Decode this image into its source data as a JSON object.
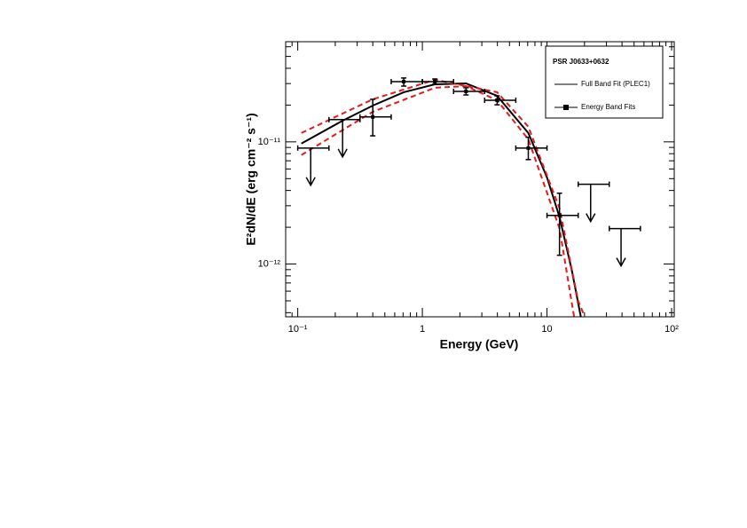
{
  "chart_data": {
    "type": "scatter",
    "xlabel": "Energy (GeV)",
    "ylabel": "E²dN/dE (erg cm⁻² s⁻¹)",
    "xscale": "log",
    "yscale": "log",
    "xlim": [
      0.08,
      105
    ],
    "ylim": [
      3.7e-13,
      6.6e-11
    ],
    "xticks": [
      {
        "value": 0.1,
        "label": "10⁻¹"
      },
      1,
      10,
      {
        "value": 100,
        "label": "10²"
      }
    ],
    "yticks": [
      {
        "value": 1e-12,
        "label": "10⁻¹²"
      },
      {
        "value": 1e-11,
        "label": "10⁻¹¹"
      }
    ],
    "grid": false,
    "legend": {
      "title": "PSR J0633+0632",
      "position": "top-right"
    },
    "series": [
      {
        "name": "Full Band Fit (PLEC1)",
        "color": "#000000",
        "style": "line",
        "x": [
          0.107,
          0.229,
          0.4,
          0.709,
          1.26,
          2.24,
          3.98,
          7.08,
          10,
          12.6,
          15.8,
          18.7
        ],
        "values": [
          9.7e-12,
          1.49e-11,
          1.98e-11,
          2.55e-11,
          2.96e-11,
          3.01e-11,
          2.38e-11,
          1.18e-11,
          5.1e-12,
          2.42e-12,
          8.9e-13,
          3.7e-13
        ]
      },
      {
        "color": "#e41a1c",
        "style": "dashed",
        "x": [
          0.107,
          0.4,
          1.26,
          3.98,
          7.08,
          12.6,
          17.8,
          20.1
        ],
        "values": [
          1.18e-11,
          2.23e-11,
          3.22e-11,
          2.55e-11,
          1.33e-11,
          2.86e-12,
          5e-13,
          3.7e-13
        ]
      },
      {
        "color": "#e41a1c",
        "style": "dashed",
        "x": [
          0.107,
          0.4,
          1.26,
          2.24,
          3.98,
          7.08,
          12.6,
          16.5
        ],
        "values": [
          7.8e-12,
          1.76e-11,
          2.77e-11,
          2.86e-11,
          2.19e-11,
          1.05e-11,
          1.95e-12,
          3.7e-13
        ]
      },
      {
        "name": "Energy Band Fits",
        "color": "#000000",
        "style": "points",
        "x": [
          0.127,
          0.229,
          0.4,
          0.709,
          1.26,
          2.24,
          3.98,
          7.08,
          12.6,
          22.4,
          39.3
        ],
        "values": [
          8.9e-12,
          1.52e-11,
          1.6e-11,
          3.11e-11,
          3.11e-11,
          2.59e-11,
          2.19e-11,
          8.9e-12,
          2.5e-12,
          4.5e-12,
          1.95e-12
        ],
        "x_low": [
          0.1,
          0.178,
          0.316,
          0.562,
          1,
          1.78,
          3.16,
          5.62,
          10,
          17.8,
          31.6
        ],
        "x_high": [
          0.178,
          0.316,
          0.562,
          1,
          1.78,
          3.16,
          5.62,
          10,
          17.8,
          31.6,
          56.2
        ],
        "y_low": [
          null,
          null,
          1.12e-11,
          2.86e-11,
          2.96e-11,
          2.42e-11,
          2.01e-11,
          7.16e-12,
          1.18e-12,
          null,
          null
        ],
        "y_high": [
          null,
          null,
          2.23e-11,
          3.33e-11,
          3.27e-11,
          2.77e-11,
          2.38e-11,
          1.09e-11,
          3.8e-12,
          null,
          null
        ],
        "upper_limit": [
          true,
          true,
          false,
          false,
          false,
          false,
          false,
          false,
          false,
          true,
          true
        ]
      }
    ]
  }
}
